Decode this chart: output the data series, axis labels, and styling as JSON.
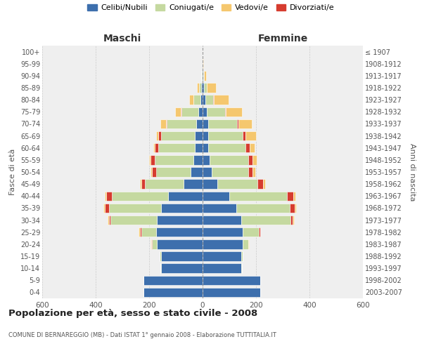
{
  "age_groups": [
    "0-4",
    "5-9",
    "10-14",
    "15-19",
    "20-24",
    "25-29",
    "30-34",
    "35-39",
    "40-44",
    "45-49",
    "50-54",
    "55-59",
    "60-64",
    "65-69",
    "70-74",
    "75-79",
    "80-84",
    "85-89",
    "90-94",
    "95-99",
    "100+"
  ],
  "birth_years": [
    "2003-2007",
    "1998-2002",
    "1993-1997",
    "1988-1992",
    "1983-1987",
    "1978-1982",
    "1973-1977",
    "1968-1972",
    "1963-1967",
    "1958-1962",
    "1953-1957",
    "1948-1952",
    "1943-1947",
    "1938-1942",
    "1933-1937",
    "1928-1932",
    "1923-1927",
    "1918-1922",
    "1913-1917",
    "1908-1912",
    "≤ 1907"
  ],
  "colors": {
    "celibe": "#3d6fad",
    "coniugato": "#c5d9a0",
    "vedovo": "#f5c76e",
    "divorziato": "#d63c2f"
  },
  "maschi": {
    "celibe": [
      220,
      220,
      155,
      155,
      170,
      175,
      170,
      155,
      130,
      70,
      45,
      35,
      30,
      30,
      25,
      15,
      8,
      4,
      2,
      1,
      1
    ],
    "coniugato": [
      2,
      2,
      2,
      5,
      20,
      55,
      175,
      195,
      210,
      145,
      130,
      145,
      135,
      125,
      110,
      65,
      25,
      8,
      2,
      0,
      0
    ],
    "vedovo": [
      0,
      0,
      0,
      0,
      2,
      5,
      5,
      5,
      5,
      5,
      5,
      5,
      5,
      10,
      20,
      20,
      18,
      8,
      2,
      0,
      0
    ],
    "divorziato": [
      0,
      0,
      0,
      0,
      2,
      5,
      5,
      15,
      20,
      15,
      15,
      15,
      15,
      10,
      2,
      2,
      0,
      0,
      0,
      0,
      0
    ]
  },
  "femmine": {
    "nubile": [
      215,
      215,
      145,
      145,
      150,
      150,
      145,
      125,
      100,
      55,
      35,
      25,
      20,
      20,
      20,
      15,
      10,
      5,
      2,
      1,
      1
    ],
    "coniugata": [
      2,
      2,
      2,
      5,
      20,
      60,
      185,
      200,
      215,
      150,
      135,
      145,
      140,
      130,
      110,
      70,
      30,
      10,
      2,
      0,
      0
    ],
    "vedova": [
      0,
      0,
      0,
      0,
      2,
      2,
      5,
      5,
      8,
      8,
      10,
      15,
      20,
      40,
      50,
      60,
      55,
      35,
      8,
      2,
      0
    ],
    "divorziata": [
      0,
      0,
      0,
      0,
      2,
      5,
      8,
      20,
      25,
      20,
      18,
      18,
      15,
      10,
      5,
      2,
      2,
      0,
      0,
      0,
      0
    ]
  },
  "title": "Popolazione per età, sesso e stato civile - 2008",
  "subtitle": "COMUNE DI BERNAREGGIO (MB) - Dati ISTAT 1° gennaio 2008 - Elaborazione TUTTITALIA.IT",
  "xlabel_left": "Maschi",
  "xlabel_right": "Femmine",
  "ylabel_left": "Fasce di età",
  "ylabel_right": "Anni di nascita",
  "xlim": 600,
  "bg_color": "#efefef",
  "grid_color": "#cccccc",
  "legend_labels": [
    "Celibi/Nubili",
    "Coniugati/e",
    "Vedovi/e",
    "Divorziati/e"
  ]
}
